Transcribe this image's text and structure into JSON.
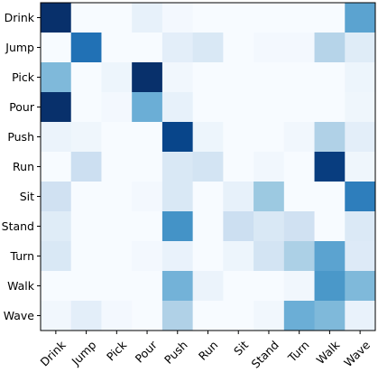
{
  "chart_data": {
    "type": "heatmap",
    "title": "",
    "xlabel": "",
    "ylabel": "",
    "colormap": "Blues",
    "colorscale_range": [
      0,
      1
    ],
    "grid": false,
    "x_categories": [
      "Drink",
      "Jump",
      "Pick",
      "Pour",
      "Push",
      "Run",
      "Sit",
      "Stand",
      "Turn",
      "Walk",
      "Wave"
    ],
    "y_categories": [
      "Drink",
      "Jump",
      "Pick",
      "Pour",
      "Push",
      "Run",
      "Sit",
      "Stand",
      "Turn",
      "Walk",
      "Wave"
    ],
    "values": [
      [
        1.0,
        0.0,
        0.0,
        0.08,
        0.02,
        0.0,
        0.0,
        0.0,
        0.0,
        0.0,
        0.55
      ],
      [
        0.0,
        0.75,
        0.0,
        0.0,
        0.1,
        0.15,
        0.0,
        0.02,
        0.02,
        0.3,
        0.12
      ],
      [
        0.45,
        0.0,
        0.05,
        1.0,
        0.03,
        0.0,
        0.0,
        0.0,
        0.0,
        0.0,
        0.05
      ],
      [
        1.0,
        0.0,
        0.02,
        0.5,
        0.08,
        0.0,
        0.0,
        0.0,
        0.0,
        0.0,
        0.04
      ],
      [
        0.06,
        0.04,
        0.0,
        0.0,
        0.92,
        0.05,
        0.0,
        0.0,
        0.03,
        0.32,
        0.1
      ],
      [
        0.0,
        0.22,
        0.0,
        0.0,
        0.15,
        0.18,
        0.0,
        0.03,
        0.0,
        0.95,
        0.04
      ],
      [
        0.2,
        0.0,
        0.0,
        0.02,
        0.15,
        0.0,
        0.08,
        0.38,
        0.0,
        0.0,
        0.7
      ],
      [
        0.12,
        0.0,
        0.0,
        0.0,
        0.62,
        0.0,
        0.22,
        0.15,
        0.2,
        0.0,
        0.14
      ],
      [
        0.15,
        0.0,
        0.0,
        0.02,
        0.07,
        0.0,
        0.05,
        0.18,
        0.33,
        0.55,
        0.13
      ],
      [
        0.0,
        0.0,
        0.0,
        0.0,
        0.48,
        0.06,
        0.0,
        0.0,
        0.03,
        0.6,
        0.45
      ],
      [
        0.03,
        0.1,
        0.02,
        0.0,
        0.32,
        0.0,
        0.0,
        0.03,
        0.5,
        0.45,
        0.07
      ]
    ]
  }
}
